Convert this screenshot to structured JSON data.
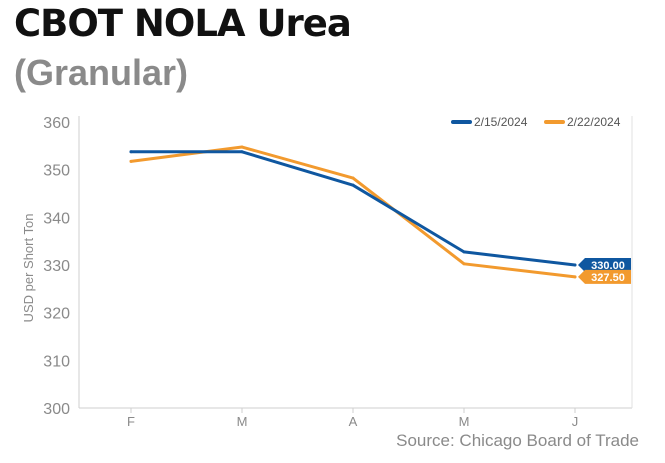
{
  "header": {
    "title": "CBOT NOLA Urea",
    "subtitle": "(Granular)"
  },
  "footer": {
    "source": "Source: Chicago Board of Trade"
  },
  "chart_data": {
    "type": "line",
    "title": "CBOT NOLA Urea",
    "subtitle": "(Granular)",
    "xlabel": "",
    "ylabel": "USD per Short Ton",
    "categories": [
      "F",
      "M",
      "A",
      "M",
      "J"
    ],
    "ylim": [
      300,
      360
    ],
    "yticks": [
      300,
      310,
      320,
      330,
      340,
      350,
      360
    ],
    "grid": false,
    "legend": "top-right",
    "series": [
      {
        "name": "2/15/2024",
        "color": "#0f57a0",
        "values": [
          353.75,
          353.75,
          346.75,
          332.75,
          330.0
        ],
        "end_label": "330.00"
      },
      {
        "name": "2/22/2024",
        "color": "#f29a2e",
        "values": [
          351.75,
          354.75,
          348.25,
          330.25,
          327.5
        ],
        "end_label": "327.50"
      }
    ]
  }
}
